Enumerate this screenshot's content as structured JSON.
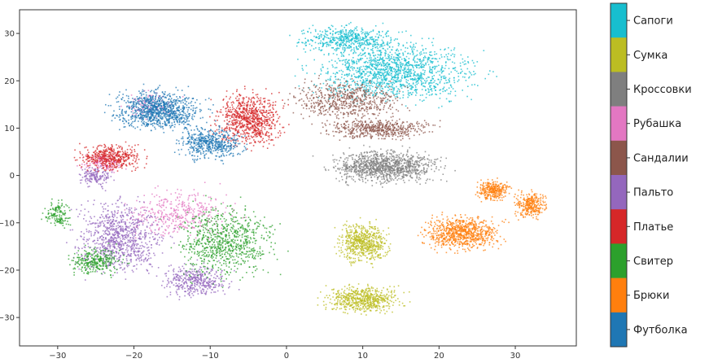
{
  "chart_data": {
    "type": "scatter",
    "title": "",
    "xlabel": "",
    "ylabel": "",
    "xlim": [
      -35,
      38
    ],
    "ylim": [
      -36,
      35
    ],
    "xticks": [
      -30,
      -20,
      -10,
      0,
      10,
      20,
      30
    ],
    "yticks": [
      30,
      20,
      10,
      0,
      -10,
      -20,
      -30
    ],
    "grid": false,
    "legend": "colorbar-right",
    "series": [
      {
        "name": "Сапоги",
        "color": "#17becf",
        "clusters": [
          {
            "cx": 14,
            "cy": 22,
            "rx": 15,
            "ry": 9,
            "n": 1400
          },
          {
            "cx": 8,
            "cy": 29,
            "rx": 9,
            "ry": 4,
            "n": 500
          }
        ]
      },
      {
        "name": "Сумка",
        "color": "#bcbd22",
        "clusters": [
          {
            "cx": 10,
            "cy": -14,
            "rx": 4.5,
            "ry": 6,
            "n": 600
          },
          {
            "cx": 10,
            "cy": -26,
            "rx": 7,
            "ry": 4,
            "n": 600
          }
        ]
      },
      {
        "name": "Кроссовки",
        "color": "#7f7f7f",
        "clusters": [
          {
            "cx": 13,
            "cy": 2,
            "rx": 10,
            "ry": 5,
            "n": 1100
          }
        ]
      },
      {
        "name": "Рубашка",
        "color": "#e377c2",
        "clusters": [
          {
            "cx": -14,
            "cy": -8,
            "rx": 10,
            "ry": 7,
            "n": 400
          },
          {
            "cx": -24,
            "cy": 3,
            "rx": 4,
            "ry": 3,
            "n": 150
          },
          {
            "cx": -18,
            "cy": 15,
            "rx": 5,
            "ry": 4,
            "n": 120
          }
        ]
      },
      {
        "name": "Сандалии",
        "color": "#8c564b",
        "clusters": [
          {
            "cx": 8,
            "cy": 16,
            "rx": 10,
            "ry": 6,
            "n": 600
          },
          {
            "cx": 12,
            "cy": 10,
            "rx": 10,
            "ry": 3,
            "n": 500
          }
        ]
      },
      {
        "name": "Пальто",
        "color": "#9467bd",
        "clusters": [
          {
            "cx": -22,
            "cy": -13,
            "rx": 8,
            "ry": 11,
            "n": 900
          },
          {
            "cx": -12,
            "cy": -22,
            "rx": 6,
            "ry": 5,
            "n": 400
          },
          {
            "cx": -25,
            "cy": 0,
            "rx": 3,
            "ry": 3,
            "n": 150
          }
        ]
      },
      {
        "name": "Платье",
        "color": "#d62728",
        "clusters": [
          {
            "cx": -5,
            "cy": 12,
            "rx": 6,
            "ry": 8,
            "n": 800
          },
          {
            "cx": -23,
            "cy": 4,
            "rx": 6,
            "ry": 4,
            "n": 450
          }
        ]
      },
      {
        "name": "Свитер",
        "color": "#2ca02c",
        "clusters": [
          {
            "cx": -8,
            "cy": -14,
            "rx": 9,
            "ry": 11,
            "n": 800
          },
          {
            "cx": -25,
            "cy": -18,
            "rx": 5,
            "ry": 4,
            "n": 300
          },
          {
            "cx": -30,
            "cy": -8,
            "rx": 2.5,
            "ry": 4,
            "n": 150
          }
        ]
      },
      {
        "name": "Брюки",
        "color": "#ff7f0e",
        "clusters": [
          {
            "cx": 23,
            "cy": -12,
            "rx": 7,
            "ry": 5,
            "n": 800
          },
          {
            "cx": 27,
            "cy": -3,
            "rx": 3,
            "ry": 3,
            "n": 300
          },
          {
            "cx": 32,
            "cy": -6,
            "rx": 3,
            "ry": 4,
            "n": 300
          }
        ]
      },
      {
        "name": "Футболка",
        "color": "#1f77b4",
        "clusters": [
          {
            "cx": -17,
            "cy": 14,
            "rx": 8,
            "ry": 6,
            "n": 1000
          },
          {
            "cx": -10,
            "cy": 7,
            "rx": 6,
            "ry": 5,
            "n": 500
          }
        ]
      }
    ]
  }
}
